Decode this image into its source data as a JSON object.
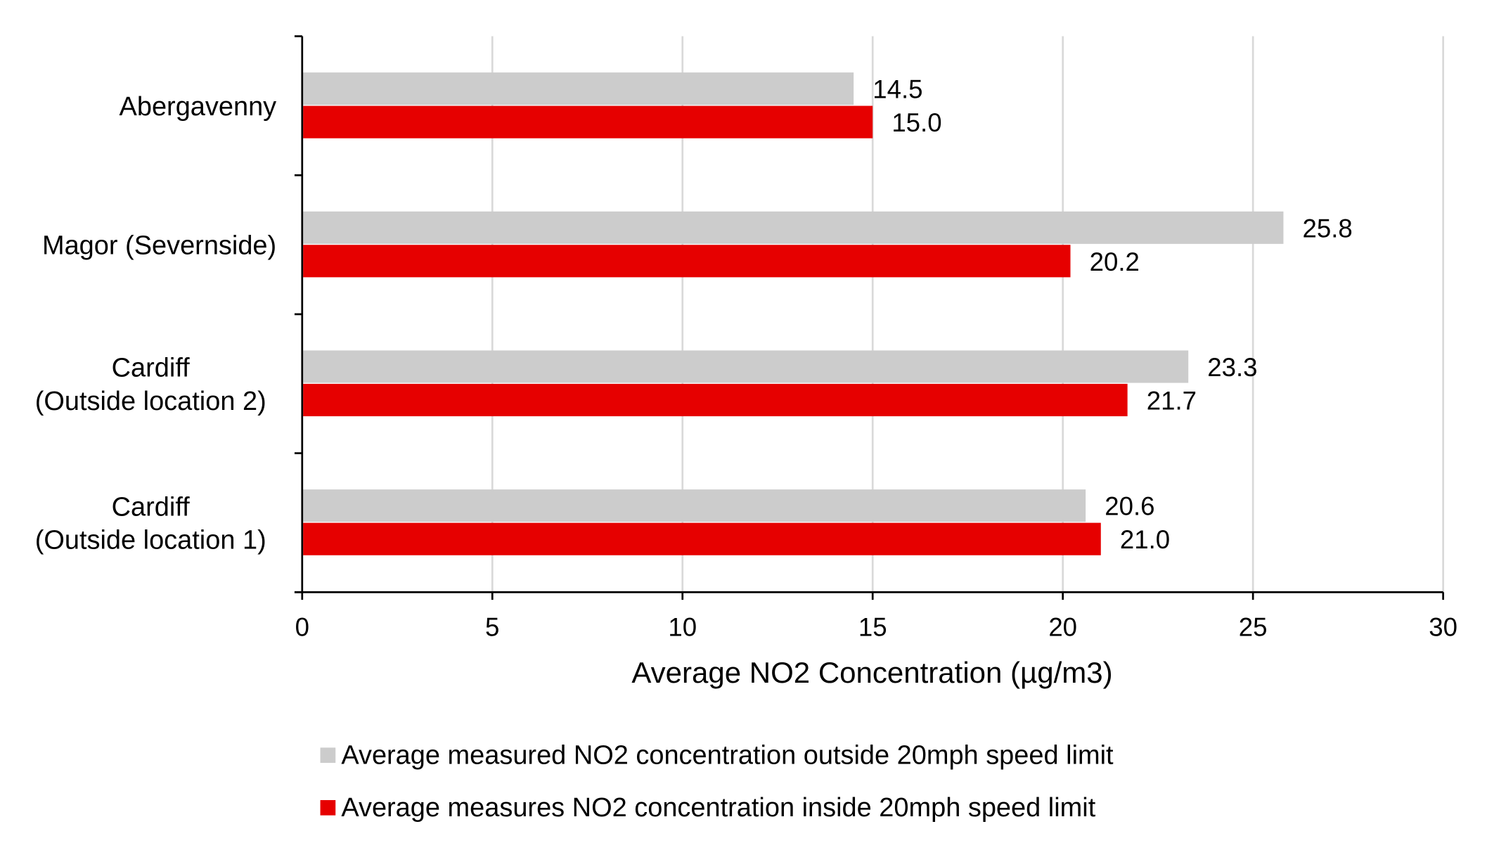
{
  "chart_data": {
    "type": "bar",
    "orientation": "horizontal",
    "title": "",
    "xlabel": "Average NO2 Concentration (µg/m3)",
    "ylabel": "",
    "xlim": [
      0,
      30
    ],
    "xticks": [
      "0",
      "5",
      "10",
      "15",
      "20",
      "25",
      "30"
    ],
    "grid": true,
    "legend_position": "bottom",
    "categories": [
      [
        "Abergavenny"
      ],
      [
        "Magor (Severnside)"
      ],
      [
        "Cardiff",
        "(Outside location 2)"
      ],
      [
        "Cardiff",
        "(Outside location 1)"
      ]
    ],
    "series": [
      {
        "name": "Average measured NO2 concentration outside 20mph speed limit",
        "color": "#cccccc",
        "values": [
          14.5,
          25.8,
          23.3,
          20.6
        ],
        "labels": [
          "14.5",
          "25.8",
          "23.3",
          "20.6"
        ]
      },
      {
        "name": "Average measures NO2 concentration inside 20mph speed limit",
        "color": "#e60000",
        "values": [
          15.0,
          20.2,
          21.7,
          21.0
        ],
        "labels": [
          "15.0",
          "20.2",
          "21.7",
          "21.0"
        ]
      }
    ]
  }
}
